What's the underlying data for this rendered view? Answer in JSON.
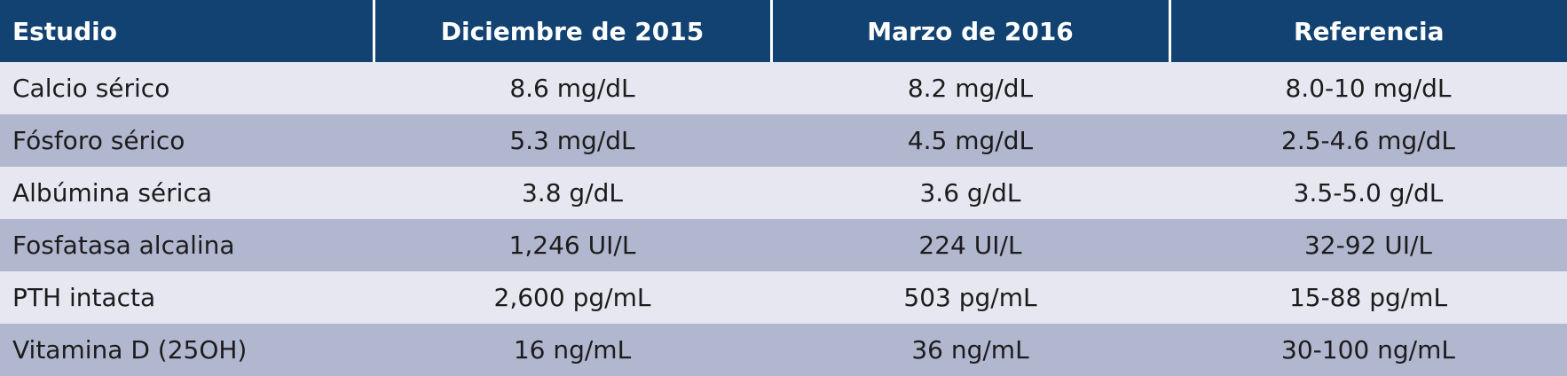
{
  "table": {
    "header": [
      "Estudio",
      "Diciembre de 2015",
      "Marzo de 2016",
      "Referencia"
    ],
    "rows": [
      [
        "Calcio sérico",
        "8.6 mg/dL",
        "8.2 mg/dL",
        "8.0-10 mg/dL"
      ],
      [
        "Fósforo sérico",
        "5.3 mg/dL",
        "4.5 mg/dL",
        "2.5-4.6 mg/dL"
      ],
      [
        "Albúmina sérica",
        "3.8 g/dL",
        "3.6 g/dL",
        "3.5-5.0 g/dL"
      ],
      [
        "Fosfatasa alcalina",
        "1,246 UI/L",
        "224 UI/L",
        "32-92 UI/L"
      ],
      [
        "PTH intacta",
        "2,600 pg/mL",
        "503 pg/mL",
        "15-88 pg/mL"
      ],
      [
        "Vitamina D (25OH)",
        "16 ng/mL",
        "36 ng/mL",
        "30-100 ng/mL"
      ]
    ]
  }
}
